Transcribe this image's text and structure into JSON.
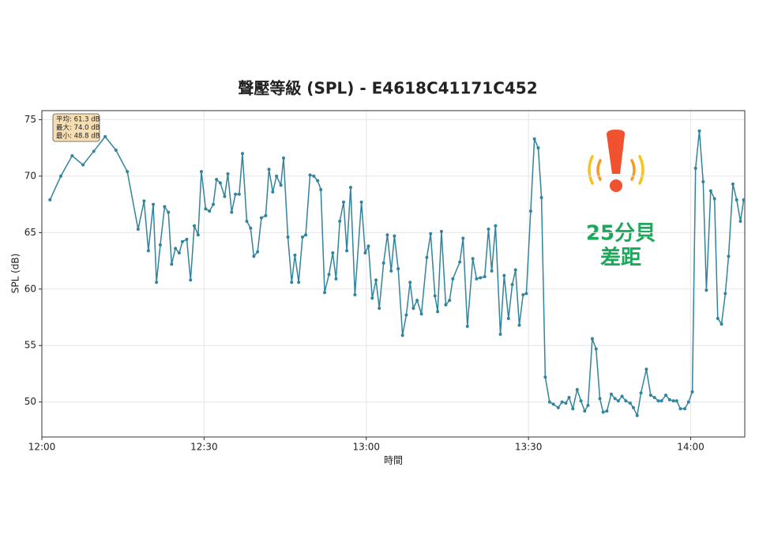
{
  "chart_data": {
    "type": "line",
    "title": "聲壓等級 (SPL) - E4618C41171C452",
    "x_label": "時間",
    "y_label": "SPL (dB)",
    "stats": [
      "平均: 61.3 dB",
      "最大: 74.0 dB",
      "最小: 48.8 dB"
    ],
    "annotation": [
      "25分貝",
      "差距"
    ],
    "xlim": [
      0,
      130
    ],
    "xticks": [
      {
        "value": 0,
        "label": "12:00"
      },
      {
        "value": 30,
        "label": "12:30"
      },
      {
        "value": 60,
        "label": "13:00"
      },
      {
        "value": 90,
        "label": "13:30"
      },
      {
        "value": 120,
        "label": "14:00"
      }
    ],
    "ylim": [
      46.9,
      75.8
    ],
    "yticks": [
      50,
      55,
      60,
      65,
      70,
      75
    ],
    "grid": true,
    "x": [
      1.5,
      3.5,
      5.6,
      7.6,
      9.6,
      11.7,
      13.7,
      15.8,
      17.8,
      18.9,
      19.7,
      20.6,
      21.2,
      21.9,
      22.7,
      23.4,
      24.0,
      24.7,
      25.4,
      26.0,
      26.8,
      27.5,
      28.2,
      28.9,
      29.5,
      30.3,
      31.0,
      31.7,
      32.3,
      33.0,
      33.8,
      34.4,
      35.1,
      35.8,
      36.5,
      37.1,
      37.9,
      38.6,
      39.2,
      39.9,
      40.6,
      41.4,
      42.0,
      42.7,
      43.4,
      44.2,
      44.7,
      45.5,
      46.2,
      46.8,
      47.5,
      48.2,
      48.8,
      49.6,
      50.3,
      51.0,
      51.6,
      52.3,
      53.1,
      53.8,
      54.4,
      55.1,
      55.8,
      56.4,
      57.1,
      57.9,
      59.1,
      59.8,
      60.4,
      61.1,
      61.8,
      62.4,
      63.2,
      63.9,
      64.6,
      65.2,
      65.9,
      66.7,
      67.4,
      68.1,
      68.7,
      69.4,
      70.2,
      71.2,
      71.9,
      72.7,
      73.2,
      73.9,
      74.7,
      75.4,
      76.0,
      77.3,
      77.9,
      78.7,
      79.7,
      80.4,
      81.1,
      81.9,
      82.6,
      83.2,
      83.9,
      84.8,
      85.5,
      86.3,
      87.0,
      87.6,
      88.3,
      89.0,
      89.6,
      90.4,
      91.1,
      91.8,
      92.4,
      93.1,
      93.9,
      94.6,
      95.5,
      96.2,
      96.9,
      97.5,
      98.2,
      99.0,
      99.7,
      100.4,
      101.0,
      101.8,
      102.5,
      103.2,
      103.8,
      104.5,
      105.3,
      106.0,
      106.6,
      107.3,
      108.0,
      108.8,
      109.4,
      110.1,
      110.8,
      111.8,
      112.6,
      113.3,
      114.0,
      114.6,
      115.4,
      116.1,
      116.8,
      117.4,
      118.1,
      118.9,
      119.6,
      120.3,
      120.9,
      121.6,
      122.3,
      122.9,
      123.7,
      124.4,
      125.0,
      125.7,
      126.4,
      127.0,
      127.8,
      128.5,
      129.2,
      129.8
    ],
    "series": [
      {
        "name": "SPL",
        "color": "#31849b",
        "values": [
          67.9,
          70.0,
          71.8,
          71.0,
          72.2,
          73.5,
          72.3,
          70.4,
          65.3,
          67.8,
          63.4,
          67.5,
          60.6,
          63.9,
          67.3,
          66.8,
          62.2,
          63.6,
          63.2,
          64.2,
          64.4,
          60.8,
          65.6,
          64.8,
          70.4,
          67.1,
          66.9,
          67.5,
          69.7,
          69.4,
          68.2,
          70.2,
          66.8,
          68.4,
          68.4,
          72.0,
          66.0,
          65.4,
          62.9,
          63.3,
          66.3,
          66.5,
          70.6,
          68.6,
          70.0,
          69.2,
          71.6,
          64.6,
          60.6,
          63.0,
          60.6,
          64.6,
          64.8,
          70.1,
          70.0,
          69.6,
          68.8,
          59.7,
          61.3,
          63.2,
          60.9,
          66.0,
          67.7,
          63.4,
          69.0,
          59.5,
          67.7,
          63.2,
          63.8,
          59.2,
          60.8,
          58.3,
          62.3,
          64.8,
          61.6,
          64.7,
          61.8,
          55.9,
          57.7,
          60.6,
          58.3,
          59.0,
          57.8,
          62.8,
          64.9,
          59.4,
          58.0,
          65.1,
          58.6,
          59.0,
          60.9,
          62.4,
          64.5,
          56.7,
          62.7,
          60.9,
          61.0,
          61.1,
          65.3,
          61.6,
          65.6,
          56.0,
          61.2,
          57.4,
          60.4,
          61.7,
          56.8,
          59.5,
          59.6,
          66.9,
          73.3,
          72.5,
          68.1,
          52.2,
          50.0,
          49.8,
          49.5,
          50.0,
          49.9,
          50.4,
          49.4,
          51.1,
          50.1,
          49.2,
          49.7,
          55.6,
          54.7,
          50.3,
          49.1,
          49.2,
          50.7,
          50.3,
          50.1,
          50.5,
          50.1,
          49.9,
          49.5,
          48.8,
          50.8,
          52.9,
          50.6,
          50.4,
          50.1,
          50.1,
          50.6,
          50.2,
          50.1,
          50.1,
          49.4,
          49.4,
          50.0,
          50.9,
          70.7,
          74.0,
          69.5,
          59.9,
          68.7,
          68.0,
          57.4,
          56.9,
          59.6,
          62.9,
          69.3,
          67.9,
          66.0,
          67.9
        ]
      }
    ]
  }
}
